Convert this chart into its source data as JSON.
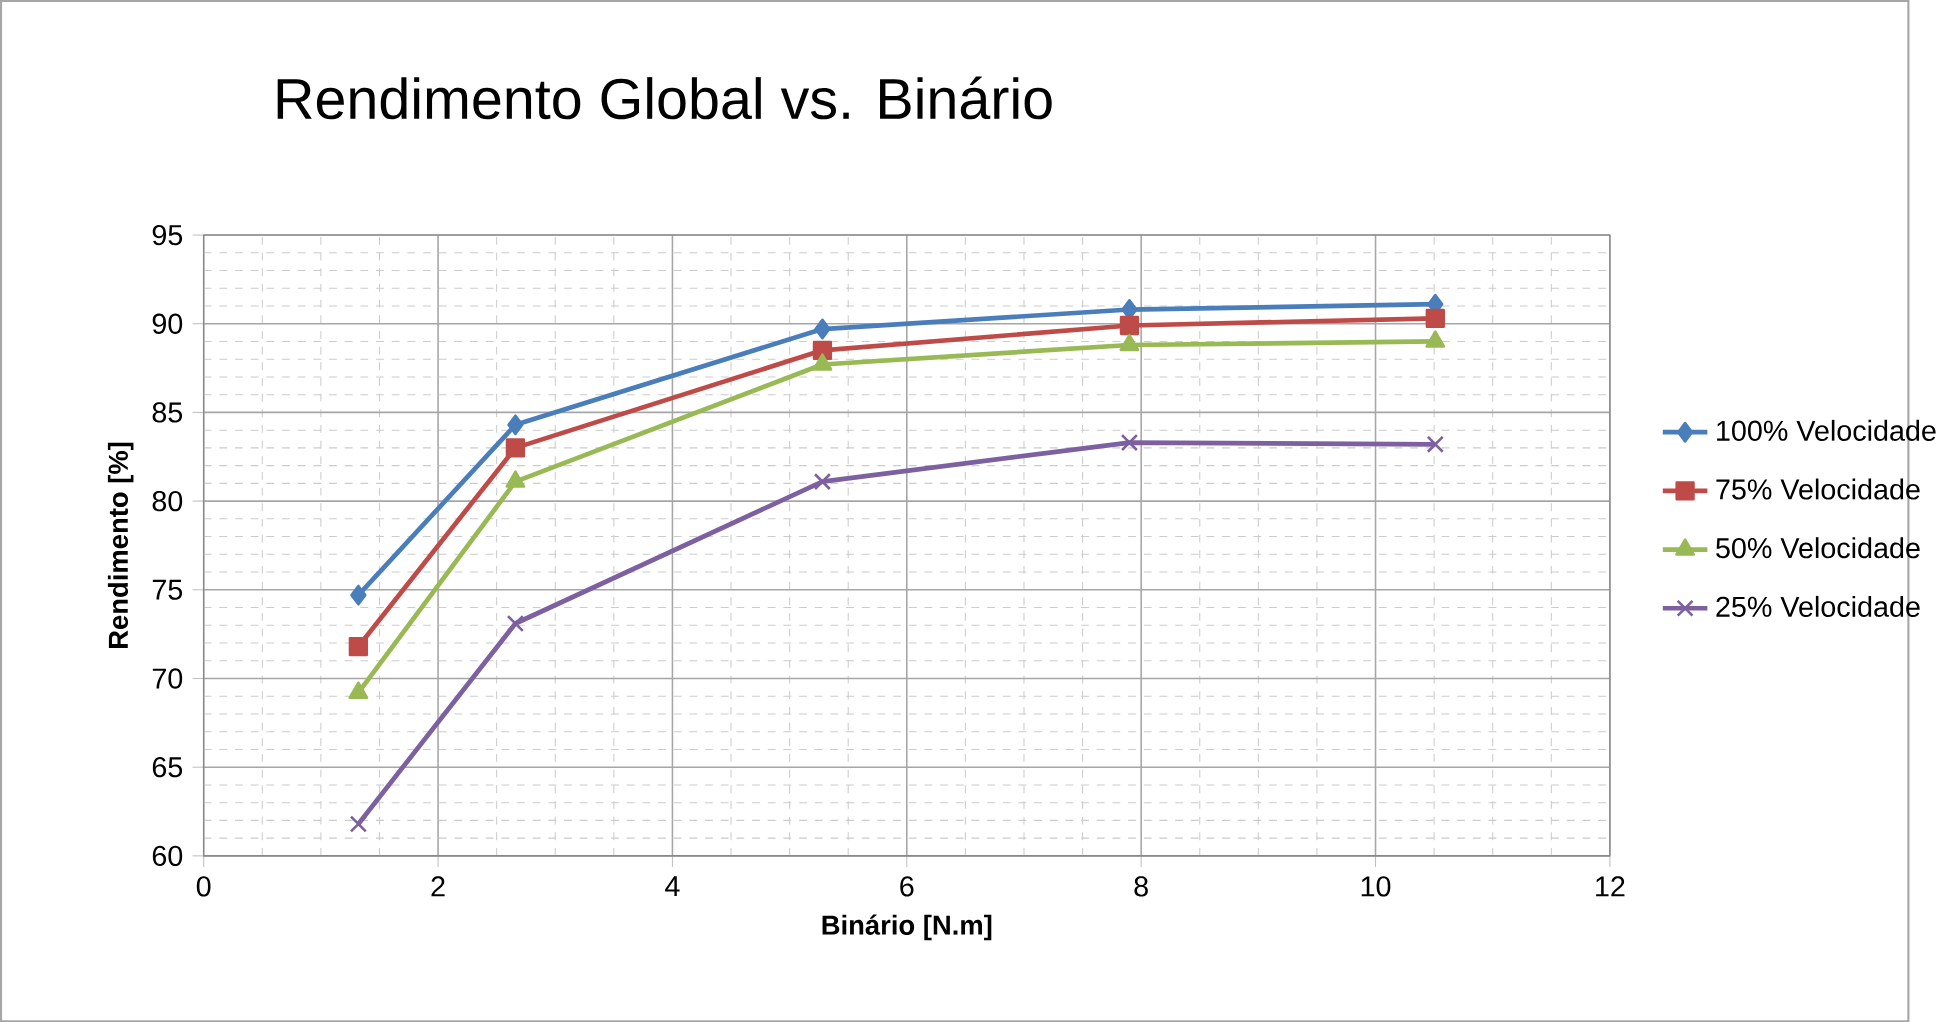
{
  "chart_data": {
    "type": "line",
    "title": "Rendimento Global vs. Binário",
    "xlabel": "Binário [N.m]",
    "ylabel": "Rendimento [%]",
    "x": [
      1.32,
      2.66,
      5.28,
      7.9,
      10.51
    ],
    "series": [
      {
        "name": "100% Velocidade",
        "color": "#4a7ebb",
        "marker": "diamond",
        "values": [
          74.7,
          84.3,
          89.7,
          90.8,
          91.1
        ]
      },
      {
        "name": "75% Velocidade",
        "color": "#be4b48",
        "marker": "square",
        "values": [
          71.8,
          83.0,
          88.5,
          89.9,
          90.3
        ]
      },
      {
        "name": "50% Velocidade",
        "color": "#98b954",
        "marker": "triangle",
        "values": [
          69.2,
          81.1,
          87.7,
          88.8,
          89.0
        ]
      },
      {
        "name": "25% Velocidade",
        "color": "#7d60a0",
        "marker": "cross",
        "values": [
          61.8,
          73.1,
          81.1,
          83.3,
          83.2
        ]
      }
    ],
    "xlim": [
      0,
      12
    ],
    "xticks": [
      0,
      2,
      4,
      6,
      8,
      10,
      12
    ],
    "ylim": [
      60,
      95
    ],
    "yticks": [
      60,
      65,
      70,
      75,
      80,
      85,
      90,
      95
    ],
    "grid": true,
    "legend": "right",
    "line_style": "solid"
  }
}
